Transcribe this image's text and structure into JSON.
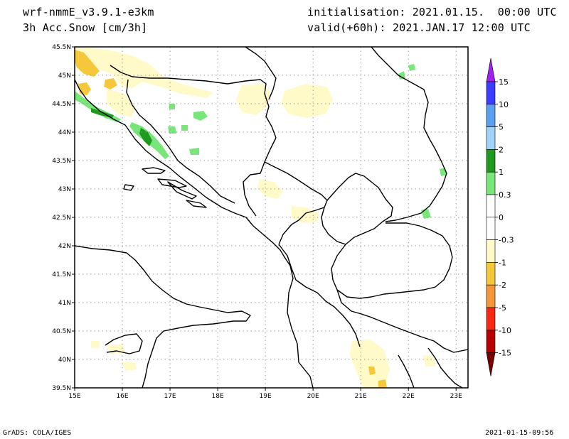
{
  "header": {
    "model": "wrf-nmmE_v3.9.1-e3km",
    "field": "3h Acc.Snow [cm/3h]",
    "initialisation": "initialisation: 2021.01.15.  00:00 UTC",
    "valid": "valid(+60h): 2021.JAN.17 12:00 UTC"
  },
  "map": {
    "lon_range": [
      15,
      23.25
    ],
    "lat_range": [
      39.5,
      45.5
    ],
    "x_ticks": [
      "15E",
      "16E",
      "17E",
      "18E",
      "19E",
      "20E",
      "21E",
      "22E",
      "23E"
    ],
    "y_ticks": [
      "45.5N",
      "45N",
      "44.5N",
      "44N",
      "43.5N",
      "43N",
      "42.5N",
      "42N",
      "41.5N",
      "41N",
      "40.5N",
      "40N",
      "39.5N"
    ],
    "grid": "dotted"
  },
  "colorbar": {
    "labels": [
      "15",
      "10",
      "5",
      "2",
      "1",
      "0.3",
      "0",
      "-0.3",
      "-1",
      "-2",
      "-5",
      "-10",
      "-15"
    ],
    "colors": [
      "#3c3cff",
      "#5aa0f0",
      "#a0d2fa",
      "#1e9b1e",
      "#78e678",
      "#ffffff",
      "#ffffff",
      "#fffac8",
      "#f5c83c",
      "#f5963c",
      "#f52814",
      "#b40000"
    ],
    "top_arrow_color": "#a020f0",
    "bottom_arrow_color": "#780000"
  },
  "footer": {
    "credit": "GrADS: COLA/IGES",
    "timestamp": "2021-01-15-09:56"
  }
}
